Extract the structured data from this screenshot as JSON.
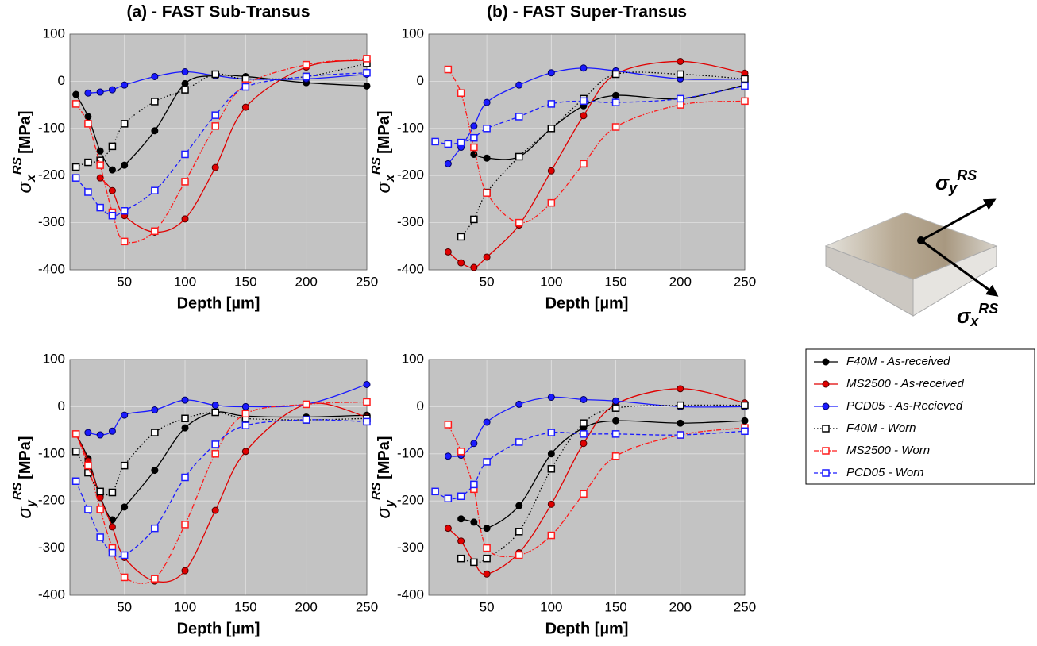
{
  "chart_data": [
    {
      "type": "line",
      "title": "(a) - FAST Sub-Transus",
      "x_label": "Depth [µm]",
      "y_label": {
        "symbol": "σ",
        "sub": "x",
        "sup": "RS",
        "unit": "[MPa]"
      },
      "x": [
        10,
        20,
        30,
        40,
        50,
        75,
        100,
        125,
        150,
        200,
        250
      ],
      "xlim": [
        5,
        250
      ],
      "xticks": [
        50,
        100,
        150,
        200,
        250
      ],
      "ylim": [
        -400,
        100
      ],
      "yticks": [
        -400,
        -300,
        -200,
        -100,
        0,
        100
      ],
      "grid": true,
      "series": [
        {
          "name": "F40M - As-received",
          "color": "#000000",
          "marker": "circle",
          "dash": "solid",
          "values": [
            -28,
            -75,
            -148,
            -188,
            -178,
            -105,
            -5,
            12,
            10,
            -3,
            -10
          ]
        },
        {
          "name": "MS2500 - As-received",
          "color": "#e00000",
          "marker": "circle",
          "dash": "solid",
          "values": [
            null,
            null,
            -205,
            -232,
            -285,
            -320,
            -292,
            -183,
            -55,
            30,
            45
          ]
        },
        {
          "name": "PCD05 - As-Recieved",
          "color": "#1a1aff",
          "marker": "circle",
          "dash": "solid",
          "values": [
            null,
            -25,
            -23,
            -18,
            -8,
            10,
            20,
            12,
            5,
            5,
            15
          ]
        },
        {
          "name": "F40M - Worn",
          "color": "#000000",
          "marker": "square",
          "dash": "dotted",
          "values": [
            -182,
            -172,
            -168,
            -138,
            -90,
            -43,
            -18,
            15,
            5,
            10,
            38
          ]
        },
        {
          "name": "MS2500 - Worn",
          "color": "#ff1a1a",
          "marker": "square",
          "dash": "dashdot",
          "values": [
            -48,
            -90,
            -178,
            -278,
            -340,
            -318,
            -213,
            -95,
            -8,
            35,
            48
          ]
        },
        {
          "name": "PCD05 - Worn",
          "color": "#1a1aff",
          "marker": "square",
          "dash": "dashed",
          "values": [
            -205,
            -235,
            -268,
            -285,
            -275,
            -232,
            -155,
            -72,
            -12,
            10,
            18
          ]
        }
      ]
    },
    {
      "type": "line",
      "title": "(b) - FAST Super-Transus",
      "x_label": "Depth [µm]",
      "y_label": {
        "symbol": "σ",
        "sub": "x",
        "sup": "RS",
        "unit": "[MPa]"
      },
      "x": [
        10,
        20,
        30,
        40,
        50,
        75,
        100,
        125,
        150,
        200,
        250
      ],
      "xlim": [
        5,
        250
      ],
      "xticks": [
        50,
        100,
        150,
        200,
        250
      ],
      "ylim": [
        -400,
        100
      ],
      "yticks": [
        -400,
        -300,
        -200,
        -100,
        0,
        100
      ],
      "grid": true,
      "series": [
        {
          "values": [
            null,
            null,
            null,
            -155,
            -163,
            -160,
            -100,
            -52,
            -30,
            -37,
            -8
          ]
        },
        {
          "values": [
            null,
            -362,
            -385,
            -395,
            -373,
            -305,
            -190,
            -73,
            15,
            42,
            17
          ]
        },
        {
          "values": [
            null,
            -175,
            -140,
            -95,
            -45,
            -8,
            18,
            28,
            22,
            5,
            5
          ]
        },
        {
          "values": [
            null,
            null,
            -330,
            -293,
            -236,
            -160,
            -100,
            -37,
            15,
            15,
            5
          ]
        },
        {
          "values": [
            null,
            25,
            -25,
            -140,
            -237,
            -300,
            -258,
            -175,
            -97,
            -50,
            -42
          ]
        },
        {
          "values": [
            -128,
            -133,
            -130,
            -120,
            -100,
            -75,
            -48,
            -42,
            -45,
            -37,
            -10
          ]
        }
      ]
    },
    {
      "type": "line",
      "x_label": "Depth [µm]",
      "y_label": {
        "symbol": "σ",
        "sub": "y",
        "sup": "RS",
        "unit": "[MPa]"
      },
      "x": [
        10,
        20,
        30,
        40,
        50,
        75,
        100,
        125,
        150,
        200,
        250
      ],
      "xlim": [
        5,
        250
      ],
      "xticks": [
        50,
        100,
        150,
        200,
        250
      ],
      "ylim": [
        -400,
        100
      ],
      "yticks": [
        -400,
        -300,
        -200,
        -100,
        0,
        100
      ],
      "grid": true,
      "series": [
        {
          "values": [
            -58,
            -110,
            -190,
            -240,
            -213,
            -135,
            -45,
            -12,
            -20,
            -22,
            -18
          ]
        },
        {
          "values": [
            -58,
            -115,
            -193,
            -255,
            -320,
            -370,
            -348,
            -220,
            -95,
            5,
            -22
          ]
        },
        {
          "values": [
            null,
            -55,
            -60,
            -52,
            -18,
            -7,
            14,
            3,
            0,
            5,
            47
          ]
        },
        {
          "values": [
            -95,
            -140,
            -180,
            -182,
            -125,
            -55,
            -25,
            -12,
            -25,
            -28,
            -25
          ]
        },
        {
          "values": [
            -58,
            -125,
            -218,
            -300,
            -362,
            -365,
            -250,
            -100,
            -15,
            5,
            10
          ]
        },
        {
          "values": [
            -158,
            -218,
            -277,
            -310,
            -315,
            -258,
            -150,
            -80,
            -40,
            -28,
            -32
          ]
        }
      ]
    },
    {
      "type": "line",
      "x_label": "Depth [µm]",
      "y_label": {
        "symbol": "σ",
        "sub": "y",
        "sup": "RS",
        "unit": "[MPa]"
      },
      "x": [
        10,
        20,
        30,
        40,
        50,
        75,
        100,
        125,
        150,
        200,
        250
      ],
      "xlim": [
        5,
        250
      ],
      "xticks": [
        50,
        100,
        150,
        200,
        250
      ],
      "ylim": [
        -400,
        100
      ],
      "yticks": [
        -400,
        -300,
        -200,
        -100,
        0,
        100
      ],
      "grid": true,
      "series": [
        {
          "values": [
            null,
            null,
            -238,
            -245,
            -258,
            -210,
            -100,
            -45,
            -30,
            -35,
            -30
          ]
        },
        {
          "values": [
            null,
            -258,
            -285,
            -330,
            -355,
            -310,
            -207,
            -78,
            5,
            38,
            8
          ]
        },
        {
          "values": [
            null,
            -105,
            -103,
            -78,
            -33,
            5,
            20,
            15,
            12,
            0,
            0
          ]
        },
        {
          "values": [
            null,
            null,
            -322,
            -330,
            -322,
            -265,
            -132,
            -35,
            -3,
            3,
            3
          ]
        },
        {
          "values": [
            null,
            -38,
            -95,
            -175,
            -300,
            -315,
            -273,
            -185,
            -105,
            -60,
            -45
          ]
        },
        {
          "values": [
            -180,
            -195,
            -190,
            -165,
            -117,
            -75,
            -55,
            -58,
            -58,
            -60,
            -52
          ]
        }
      ]
    }
  ],
  "diagram": {
    "y_arrow": {
      "symbol": "σ",
      "sub": "y",
      "sup": "RS"
    },
    "x_arrow": {
      "symbol": "σ",
      "sub": "x",
      "sup": "RS"
    }
  }
}
